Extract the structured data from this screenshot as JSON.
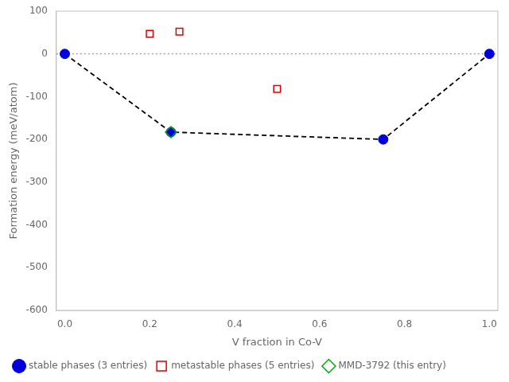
{
  "chart_data": {
    "type": "scatter",
    "xlabel": "V fraction in Co-V",
    "ylabel": "Formation energy (meV/atom)",
    "xlim": [
      -0.02,
      1.02
    ],
    "ylim": [
      -600,
      100
    ],
    "xticks": [
      {
        "value": 0.0,
        "label": "0.0"
      },
      0.2,
      0.4,
      0.6,
      0.8,
      {
        "value": 1.0,
        "label": "1.0"
      }
    ],
    "yticks": [
      100,
      0,
      -100,
      -200,
      -300,
      -400,
      -500,
      -600
    ],
    "grid": false,
    "legend": "lower left",
    "series": [
      {
        "type": "line",
        "line_style": "dotted",
        "color": "gray",
        "x": [
          -0.02,
          1.02
        ],
        "values": [
          0,
          0
        ]
      },
      {
        "type": "line",
        "line_style": "dashed",
        "color": "black",
        "x": [
          0.0,
          0.25,
          0.75,
          1.0
        ],
        "values": [
          0.0,
          -183,
          -200,
          0.0
        ]
      },
      {
        "name": "stable phases (3 entries)",
        "type": "scatter",
        "marker": "circle",
        "color": "#0000dd",
        "x": [
          0.0,
          0.25,
          0.75,
          1.0
        ],
        "values": [
          0.0,
          -183,
          -200,
          0.0
        ]
      },
      {
        "name": "metastable phases (5 entries)",
        "type": "scatter",
        "marker": "open_square",
        "color": "#dd0000",
        "x": [
          0.2,
          0.27,
          0.5
        ],
        "values": [
          47,
          52,
          -82
        ]
      },
      {
        "name": "MMD-3792 (this entry)",
        "type": "scatter",
        "marker": "open_diamond",
        "color": "#00aa00",
        "x": [
          0.25
        ],
        "values": [
          -183
        ]
      }
    ]
  }
}
